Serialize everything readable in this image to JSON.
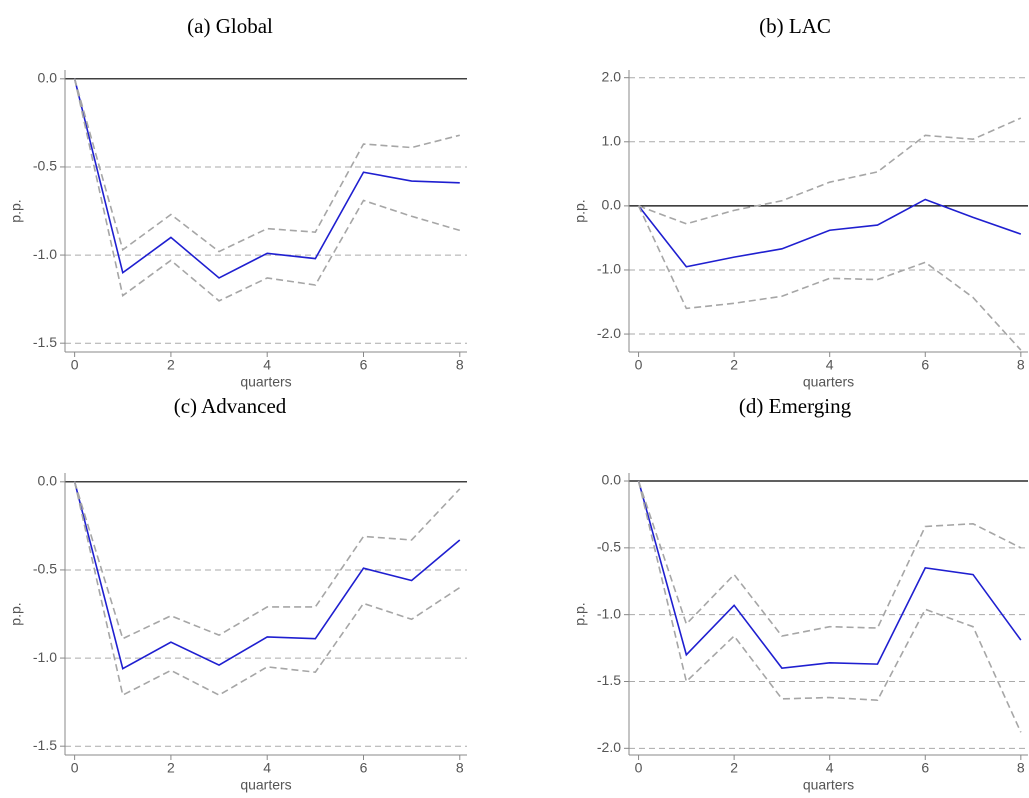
{
  "chart_data": [
    {
      "type": "line",
      "title": "(a) Global",
      "ylabel": "p.p.",
      "xlabel": "quarters",
      "x": [
        0,
        1,
        2,
        3,
        4,
        5,
        6,
        7,
        8
      ],
      "series": [
        {
          "color": "#1f1fd0",
          "dash": false,
          "values": [
            0,
            -1.1,
            -0.9,
            -1.13,
            -0.99,
            -1.02,
            -0.53,
            -0.58,
            -0.59
          ]
        },
        {
          "color": "#a6a6a6",
          "dash": true,
          "values": [
            0,
            -0.97,
            -0.77,
            -0.98,
            -0.85,
            -0.87,
            -0.37,
            -0.39,
            -0.32
          ]
        },
        {
          "color": "#a6a6a6",
          "dash": true,
          "values": [
            0,
            -1.23,
            -1.03,
            -1.26,
            -1.13,
            -1.17,
            -0.69,
            -0.78,
            -0.86
          ]
        }
      ],
      "xlim": [
        -0.2,
        8.15
      ],
      "xticks": [
        0,
        2,
        4,
        6,
        8
      ],
      "ylim": [
        -1.55,
        0.05
      ],
      "yticks": [
        {
          "value": -1.5,
          "label": "-1.5"
        },
        {
          "value": -1,
          "label": "-1.0"
        },
        {
          "value": -0.5,
          "label": "-0.5"
        },
        {
          "value": 0,
          "label": "0.0"
        }
      ],
      "grid": true,
      "zero_line": true
    },
    {
      "type": "line",
      "title": "(b) LAC",
      "ylabel": "p.p.",
      "xlabel": "quarters",
      "x": [
        0,
        1,
        2,
        3,
        4,
        5,
        6,
        7,
        8
      ],
      "series": [
        {
          "color": "#1f1fd0",
          "dash": false,
          "values": [
            0,
            -0.95,
            -0.8,
            -0.67,
            -0.38,
            -0.3,
            0.1,
            -0.18,
            -0.44
          ]
        },
        {
          "color": "#a6a6a6",
          "dash": true,
          "values": [
            0,
            -0.28,
            -0.07,
            0.08,
            0.37,
            0.53,
            1.1,
            1.04,
            1.37
          ]
        },
        {
          "color": "#a6a6a6",
          "dash": true,
          "values": [
            0,
            -1.6,
            -1.52,
            -1.41,
            -1.13,
            -1.15,
            -0.88,
            -1.43,
            -2.25
          ]
        }
      ],
      "xlim": [
        -0.2,
        8.15
      ],
      "xticks": [
        0,
        2,
        4,
        6,
        8
      ],
      "ylim": [
        -2.28,
        2.12
      ],
      "yticks": [
        {
          "value": -2,
          "label": "-2.0"
        },
        {
          "value": -1,
          "label": "-1.0"
        },
        {
          "value": 0,
          "label": "0.0"
        },
        {
          "value": 1,
          "label": "1.0"
        },
        {
          "value": 2,
          "label": "2.0"
        }
      ],
      "grid": true,
      "zero_line": true
    },
    {
      "type": "line",
      "title": "(c) Advanced",
      "ylabel": "p.p.",
      "xlabel": "quarters",
      "x": [
        0,
        1,
        2,
        3,
        4,
        5,
        6,
        7,
        8
      ],
      "series": [
        {
          "color": "#1f1fd0",
          "dash": false,
          "values": [
            0,
            -1.06,
            -0.91,
            -1.04,
            -0.88,
            -0.89,
            -0.49,
            -0.56,
            -0.33
          ]
        },
        {
          "color": "#a6a6a6",
          "dash": true,
          "values": [
            0,
            -0.89,
            -0.76,
            -0.87,
            -0.71,
            -0.71,
            -0.31,
            -0.33,
            -0.04
          ]
        },
        {
          "color": "#a6a6a6",
          "dash": true,
          "values": [
            0,
            -1.21,
            -1.07,
            -1.21,
            -1.05,
            -1.08,
            -0.69,
            -0.78,
            -0.6
          ]
        }
      ],
      "xlim": [
        -0.2,
        8.15
      ],
      "xticks": [
        0,
        2,
        4,
        6,
        8
      ],
      "ylim": [
        -1.55,
        0.05
      ],
      "yticks": [
        {
          "value": -1.5,
          "label": "-1.5"
        },
        {
          "value": -1,
          "label": "-1.0"
        },
        {
          "value": -0.5,
          "label": "-0.5"
        },
        {
          "value": 0,
          "label": "0.0"
        }
      ],
      "grid": true,
      "zero_line": true
    },
    {
      "type": "line",
      "title": "(d) Emerging",
      "ylabel": "p.p.",
      "xlabel": "quarters",
      "x": [
        0,
        1,
        2,
        3,
        4,
        5,
        6,
        7,
        8
      ],
      "series": [
        {
          "color": "#1f1fd0",
          "dash": false,
          "values": [
            0,
            -1.3,
            -0.93,
            -1.4,
            -1.36,
            -1.37,
            -0.65,
            -0.7,
            -1.19
          ]
        },
        {
          "color": "#a6a6a6",
          "dash": true,
          "values": [
            0,
            -1.07,
            -0.7,
            -1.16,
            -1.09,
            -1.1,
            -0.34,
            -0.32,
            -0.5
          ]
        },
        {
          "color": "#a6a6a6",
          "dash": true,
          "values": [
            0,
            -1.5,
            -1.16,
            -1.63,
            -1.62,
            -1.64,
            -0.96,
            -1.09,
            -1.88
          ]
        }
      ],
      "xlim": [
        -0.2,
        8.15
      ],
      "xticks": [
        0,
        2,
        4,
        6,
        8
      ],
      "ylim": [
        -2.05,
        0.06
      ],
      "yticks": [
        {
          "value": -2,
          "label": "-2.0"
        },
        {
          "value": -1.5,
          "label": "-1.5"
        },
        {
          "value": -1,
          "label": "-1.0"
        },
        {
          "value": -0.5,
          "label": "-0.5"
        },
        {
          "value": 0,
          "label": "0.0"
        }
      ],
      "grid": true,
      "zero_line": true
    }
  ]
}
